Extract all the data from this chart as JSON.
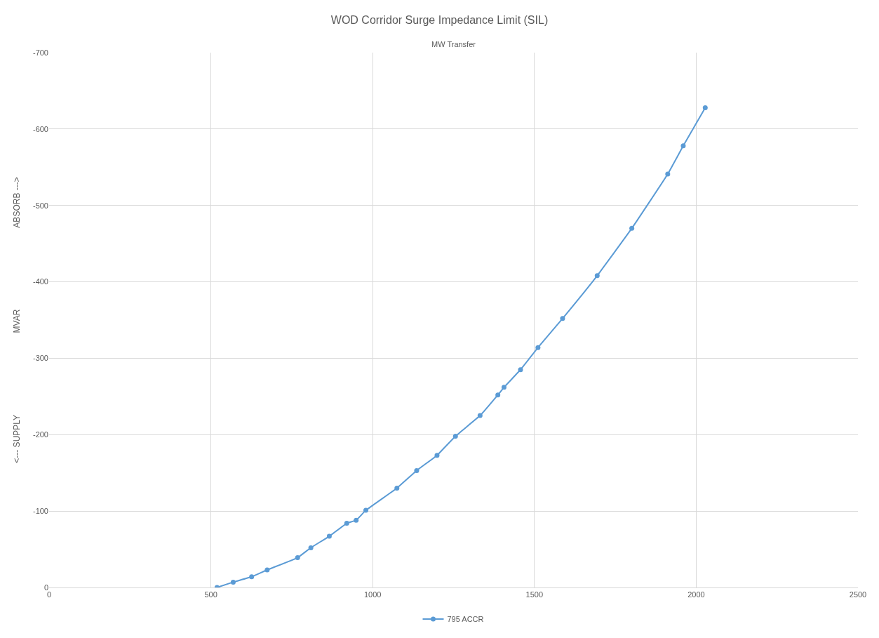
{
  "chart_data": {
    "type": "line",
    "title": "WOD Corridor Surge Impedance Limit (SIL)",
    "subtitle": "MW Transfer",
    "ylabel": "<--- SUPPLY                                   MVAR                                   ABSORB --->",
    "x": [
      519,
      569,
      626,
      674,
      768,
      809,
      866,
      920,
      949,
      979,
      1075,
      1136,
      1199,
      1256,
      1332,
      1387,
      1406,
      1457,
      1511,
      1587,
      1694,
      1801,
      1912,
      1960,
      2028
    ],
    "series": [
      {
        "name": "795 ACCR",
        "color": "#5b9bd5",
        "values": [
          0,
          -7,
          -14,
          -23,
          -39,
          -52,
          -67,
          -84,
          -88,
          -101,
          -130,
          -153,
          -173,
          -198,
          -225,
          -252,
          -262,
          -285,
          -314,
          -352,
          -408,
          -470,
          -541,
          -578,
          -628
        ]
      }
    ],
    "xlim": [
      0,
      2500
    ],
    "xticks": [
      0,
      500,
      1000,
      1500,
      2000,
      2500
    ],
    "ylim": [
      0,
      -700
    ],
    "yticks": [
      0,
      -100,
      -200,
      -300,
      -400,
      -500,
      -600,
      -700
    ],
    "grid": true,
    "legend": "bottom",
    "marker": "circle",
    "line_style": "solid"
  }
}
